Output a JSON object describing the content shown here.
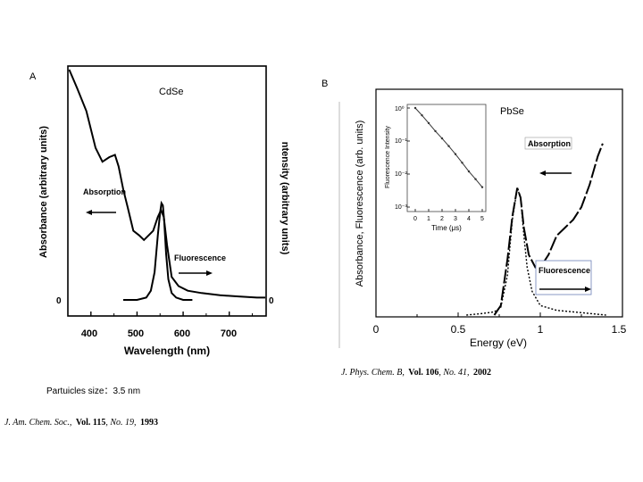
{
  "panel_a": {
    "letter": "A",
    "material": "CdSe",
    "particle_size_caption": "Partuicles size：3.5 nm",
    "citation": {
      "journal": "J. Am. Chem. Soc.,",
      "volume": "Vol. 115",
      "issue": ", No. 19,",
      "year": "1993"
    }
  },
  "panel_b": {
    "letter": "B",
    "material": "PbSe",
    "citation": {
      "journal": "J. Phys. Chem. B,",
      "volume": "Vol. 106",
      "issue": ", No. 41,",
      "year": "2002"
    }
  },
  "chart_data": [
    {
      "type": "line",
      "title": "CdSe",
      "xlabel": "Wavelength (nm)",
      "ylabel_left": "Absorbance (arbitrary units)",
      "ylabel_right": "ntensity (arbitrary units)",
      "xlim": [
        350,
        780
      ],
      "ylim": [
        0,
        1
      ],
      "xticks": [
        400,
        500,
        600,
        700
      ],
      "xtick_labels": [
        "400",
        "500",
        "600",
        "700"
      ],
      "zero_label_left": "0",
      "zero_label_right": "0",
      "annotations": [
        "Absorption",
        "Fluorescence"
      ],
      "series": [
        {
          "name": "Absorption",
          "x": [
            353,
            370,
            390,
            410,
            425,
            440,
            452,
            460,
            470,
            480,
            492,
            505,
            515,
            525,
            535,
            545,
            552,
            558,
            565,
            575,
            590,
            610,
            640,
            680,
            720,
            760,
            778
          ],
          "y": [
            1.0,
            0.92,
            0.82,
            0.66,
            0.6,
            0.62,
            0.63,
            0.58,
            0.48,
            0.4,
            0.3,
            0.28,
            0.26,
            0.28,
            0.3,
            0.36,
            0.39,
            0.36,
            0.24,
            0.1,
            0.06,
            0.04,
            0.03,
            0.02,
            0.015,
            0.01,
            0.01
          ]
        },
        {
          "name": "Fluorescence",
          "x": [
            470,
            500,
            520,
            530,
            538,
            545,
            550,
            553,
            556,
            559,
            563,
            568,
            575,
            585,
            600,
            620
          ],
          "y": [
            0.0,
            0.0,
            0.01,
            0.04,
            0.12,
            0.28,
            0.38,
            0.42,
            0.41,
            0.34,
            0.2,
            0.09,
            0.03,
            0.01,
            0.0,
            0.0
          ]
        }
      ]
    },
    {
      "type": "line",
      "title": "PbSe",
      "xlabel": "Energy (eV)",
      "ylabel": "Absorbance, Fluorescence (arb. units)",
      "xlim": [
        0,
        1.5
      ],
      "xticks": [
        0,
        0.5,
        1,
        1.5
      ],
      "xtick_labels": [
        "0",
        "0.5",
        "1",
        "1.5"
      ],
      "annotations": [
        "Absorption",
        "Fluorescence"
      ],
      "series": [
        {
          "name": "Absorption",
          "x": [
            0.72,
            0.76,
            0.8,
            0.83,
            0.86,
            0.88,
            0.9,
            0.93,
            0.97,
            1.0,
            1.05,
            1.1,
            1.15,
            1.2,
            1.25,
            1.3,
            1.35,
            1.38
          ],
          "y": [
            0.0,
            0.06,
            0.35,
            0.62,
            0.8,
            0.74,
            0.55,
            0.38,
            0.3,
            0.3,
            0.38,
            0.5,
            0.55,
            0.6,
            0.68,
            0.82,
            1.0,
            1.08
          ]
        },
        {
          "name": "Fluorescence",
          "x": [
            0.55,
            0.65,
            0.72,
            0.76,
            0.8,
            0.83,
            0.86,
            0.88,
            0.9,
            0.92,
            0.95,
            1.0,
            1.1,
            1.2,
            1.3,
            1.4
          ],
          "y": [
            0.0,
            0.01,
            0.02,
            0.05,
            0.25,
            0.6,
            0.8,
            0.74,
            0.5,
            0.3,
            0.15,
            0.06,
            0.03,
            0.02,
            0.01,
            0.0
          ]
        }
      ],
      "inset": {
        "type": "scatter",
        "xlabel": "Time (μs)",
        "ylabel": "Fluorescence Intensity",
        "yscale": "log",
        "xticks": [
          0,
          1,
          2,
          3,
          4,
          5
        ],
        "xtick_labels": [
          "0",
          "1",
          "2",
          "3",
          "4",
          "5"
        ],
        "yticks": [
          0.001,
          0.01,
          0.1,
          1
        ],
        "ytick_labels": [
          "10⁻³",
          "10⁻²",
          "10⁻¹",
          "10⁰"
        ],
        "decay": {
          "x": [
            0,
            0.5,
            1,
            1.5,
            2,
            2.5,
            3,
            3.5,
            4,
            4.5,
            5
          ],
          "y": [
            1,
            0.6,
            0.35,
            0.2,
            0.12,
            0.07,
            0.04,
            0.022,
            0.012,
            0.007,
            0.004
          ]
        }
      }
    }
  ]
}
